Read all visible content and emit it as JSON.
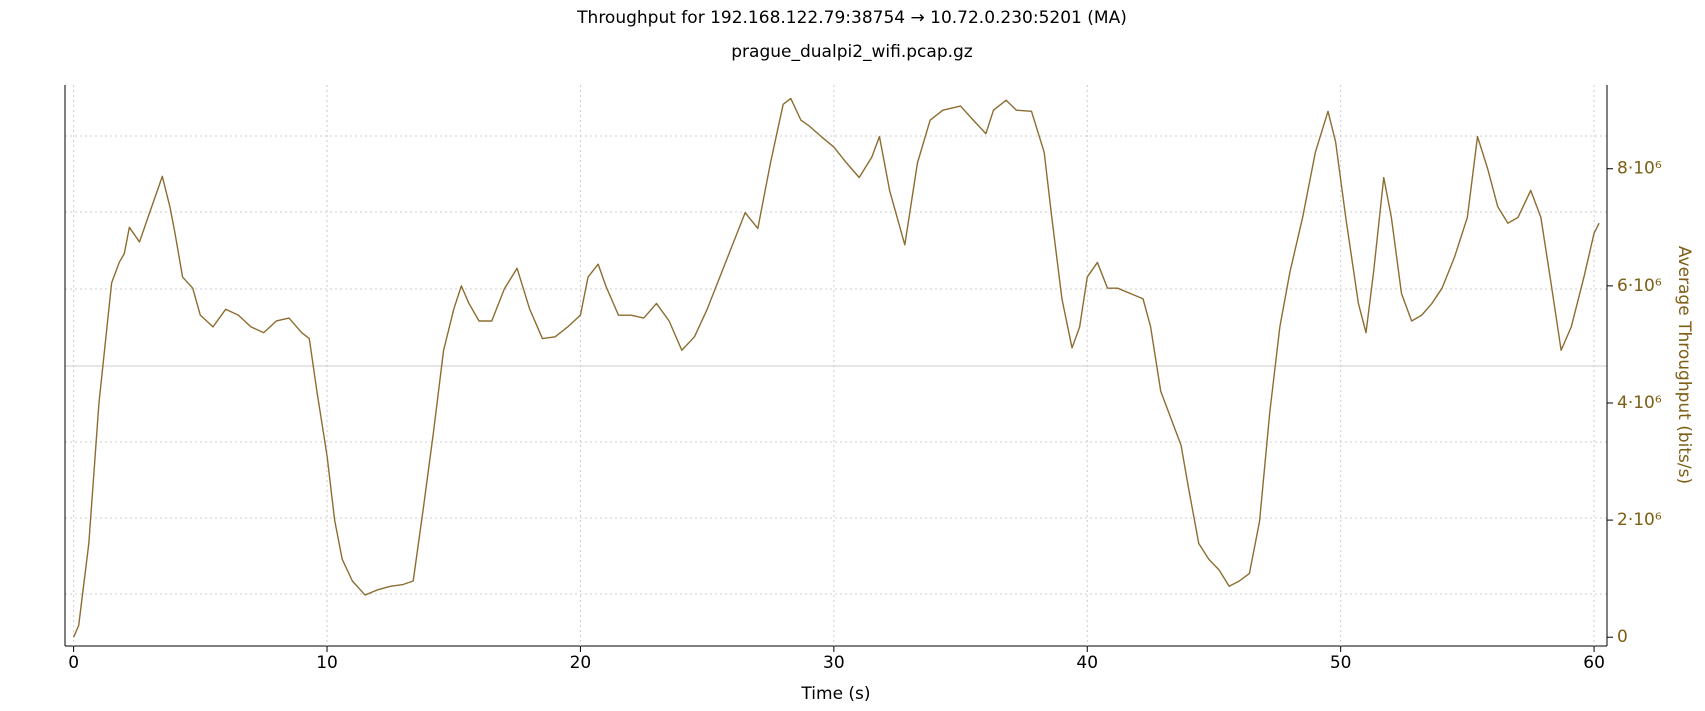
{
  "chart_data": {
    "type": "line",
    "title": "Throughput for 192.168.122.79:38754 → 10.72.0.230:5201 (MA)",
    "subtitle": "prague_dualpi2_wifi.pcap.gz",
    "x_label": "Time (s)",
    "y_label": "Average Throughput (bits/s)",
    "color": "#8c6d31",
    "x": [
      0,
      0.2,
      0.6,
      1.0,
      1.5,
      1.8,
      2.0,
      2.2,
      2.6,
      3.0,
      3.5,
      3.8,
      4.0,
      4.3,
      4.7,
      5.0,
      5.5,
      6.0,
      6.5,
      7.0,
      7.5,
      8.0,
      8.5,
      9.0,
      9.3,
      9.6,
      10.0,
      10.3,
      10.6,
      11.0,
      11.5,
      12.0,
      12.5,
      13.0,
      13.4,
      13.8,
      14.2,
      14.6,
      15.0,
      15.3,
      15.6,
      16.0,
      16.5,
      17.0,
      17.5,
      18.0,
      18.5,
      19.0,
      19.5,
      20.0,
      20.3,
      20.7,
      21.0,
      21.5,
      22.0,
      22.5,
      23.0,
      23.5,
      24.0,
      24.5,
      25.0,
      25.5,
      26.0,
      26.5,
      27.0,
      27.5,
      28.0,
      28.3,
      28.7,
      29.0,
      29.5,
      30.0,
      30.5,
      31.0,
      31.5,
      31.8,
      32.2,
      32.8,
      33.3,
      33.8,
      34.3,
      35.0,
      35.5,
      36.0,
      36.3,
      36.8,
      37.2,
      37.8,
      38.3,
      38.6,
      39.0,
      39.4,
      39.7,
      40.0,
      40.4,
      40.8,
      41.2,
      41.7,
      42.2,
      42.5,
      42.9,
      43.3,
      43.7,
      44.0,
      44.4,
      44.8,
      45.2,
      45.6,
      46.0,
      46.4,
      46.8,
      47.2,
      47.6,
      48.0,
      48.5,
      49.0,
      49.5,
      49.8,
      50.2,
      50.7,
      51.0,
      51.3,
      51.7,
      52.0,
      52.4,
      52.8,
      53.2,
      53.6,
      54.0,
      54.5,
      55.0,
      55.4,
      55.8,
      56.2,
      56.6,
      57.0,
      57.5,
      57.9,
      58.3,
      58.7,
      59.1,
      59.6,
      60.0,
      60.2
    ],
    "values": [
      0,
      200000,
      1600000,
      4000000,
      6050000,
      6400000,
      6550000,
      7000000,
      6750000,
      7250000,
      7870000,
      7350000,
      6900000,
      6150000,
      5960000,
      5500000,
      5300000,
      5600000,
      5500000,
      5300000,
      5200000,
      5400000,
      5450000,
      5200000,
      5100000,
      4200000,
      3100000,
      2000000,
      1330000,
      960000,
      720000,
      810000,
      870000,
      900000,
      960000,
      2200000,
      3500000,
      4900000,
      5600000,
      6000000,
      5700000,
      5400000,
      5400000,
      5950000,
      6300000,
      5600000,
      5100000,
      5130000,
      5300000,
      5500000,
      6150000,
      6370000,
      6000000,
      5500000,
      5500000,
      5450000,
      5700000,
      5400000,
      4900000,
      5130000,
      5600000,
      6150000,
      6700000,
      7250000,
      6980000,
      8100000,
      9100000,
      9200000,
      8830000,
      8740000,
      8550000,
      8370000,
      8100000,
      7850000,
      8200000,
      8550000,
      7630000,
      6700000,
      8100000,
      8830000,
      9000000,
      9070000,
      8830000,
      8600000,
      9000000,
      9170000,
      9000000,
      8980000,
      8280000,
      7170000,
      5780000,
      4940000,
      5300000,
      6150000,
      6400000,
      5960000,
      5960000,
      5870000,
      5780000,
      5300000,
      4200000,
      3740000,
      3280000,
      2540000,
      1600000,
      1330000,
      1150000,
      870000,
      960000,
      1090000,
      1980000,
      3830000,
      5300000,
      6240000,
      7170000,
      8280000,
      8980000,
      8460000,
      7170000,
      5700000,
      5200000,
      6240000,
      7850000,
      7170000,
      5870000,
      5400000,
      5500000,
      5700000,
      5960000,
      6500000,
      7170000,
      8550000,
      8000000,
      7350000,
      7070000,
      7170000,
      7630000,
      7170000,
      6050000,
      4900000,
      5300000,
      6150000,
      6900000,
      7070000
    ],
    "xlim": [
      -0.34,
      60.51
    ],
    "xticks": [
      0,
      10,
      20,
      30,
      40,
      50,
      60
    ],
    "ylim": [
      -150000,
      9430000
    ],
    "yticks": [
      0,
      {
        "value": 2000000,
        "label": "2·10⁶"
      },
      {
        "value": 4000000,
        "label": "4·10⁶"
      },
      {
        "value": 6000000,
        "label": "6·10⁶"
      },
      {
        "value": 8000000,
        "label": "8·10⁶"
      }
    ],
    "grid": true
  }
}
